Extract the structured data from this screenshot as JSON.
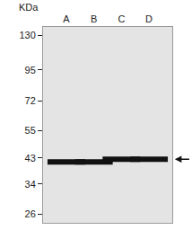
{
  "chart_data": {
    "type": "scatter",
    "ylabel": "KDa",
    "categories": [
      "A",
      "B",
      "C",
      "D"
    ],
    "values": [
      41.5,
      41.5,
      42.5,
      42.5
    ],
    "color": "#111111",
    "marker": "line-ew",
    "log": "y",
    "ylim": [
      24,
      140
    ],
    "yticks": [
      26,
      34,
      43,
      55,
      72,
      95,
      130
    ],
    "grid": false
  }
}
